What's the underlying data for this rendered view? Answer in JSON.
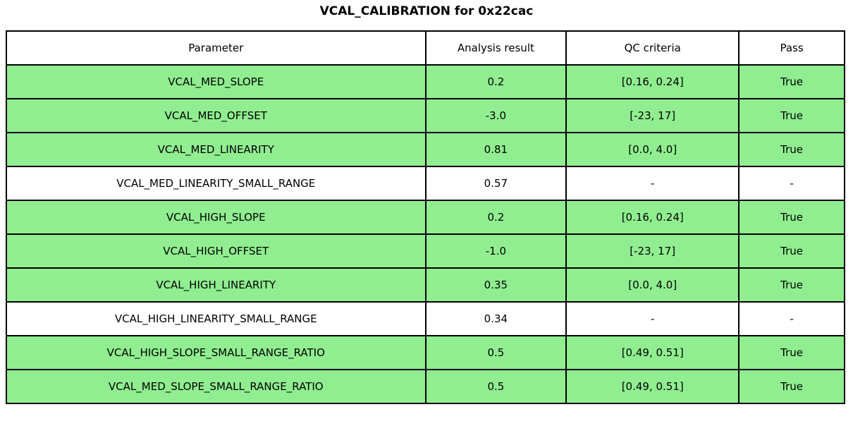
{
  "title": "VCAL_CALIBRATION for 0x22cac",
  "colors": {
    "pass_row_bg": "#90EE90",
    "neutral_row_bg": "#FFFFFF",
    "border": "#000000",
    "text": "#000000"
  },
  "chart_data": {
    "type": "table",
    "title": "VCAL_CALIBRATION for 0x22cac",
    "columns": [
      "Parameter",
      "Analysis result",
      "QC criteria",
      "Pass"
    ],
    "rows": [
      [
        "VCAL_MED_SLOPE",
        "0.2",
        "[0.16, 0.24]",
        "True"
      ],
      [
        "VCAL_MED_OFFSET",
        "-3.0",
        "[-23, 17]",
        "True"
      ],
      [
        "VCAL_MED_LINEARITY",
        "0.81",
        "[0.0, 4.0]",
        "True"
      ],
      [
        "VCAL_MED_LINEARITY_SMALL_RANGE",
        "0.57",
        "-",
        "-"
      ],
      [
        "VCAL_HIGH_SLOPE",
        "0.2",
        "[0.16, 0.24]",
        "True"
      ],
      [
        "VCAL_HIGH_OFFSET",
        "-1.0",
        "[-23, 17]",
        "True"
      ],
      [
        "VCAL_HIGH_LINEARITY",
        "0.35",
        "[0.0, 4.0]",
        "True"
      ],
      [
        "VCAL_HIGH_LINEARITY_SMALL_RANGE",
        "0.34",
        "-",
        "-"
      ],
      [
        "VCAL_HIGH_SLOPE_SMALL_RANGE_RATIO",
        "0.5",
        "[0.49, 0.51]",
        "True"
      ],
      [
        "VCAL_MED_SLOPE_SMALL_RANGE_RATIO",
        "0.5",
        "[0.49, 0.51]",
        "True"
      ]
    ],
    "row_highlight": [
      true,
      true,
      true,
      false,
      true,
      true,
      true,
      false,
      true,
      true
    ],
    "highlight_color": "#90EE90",
    "neutral_color": "#FFFFFF",
    "layout_hints": {
      "grid": true,
      "header_bg": "#FFFFFF",
      "cell_text_align": "center"
    }
  }
}
